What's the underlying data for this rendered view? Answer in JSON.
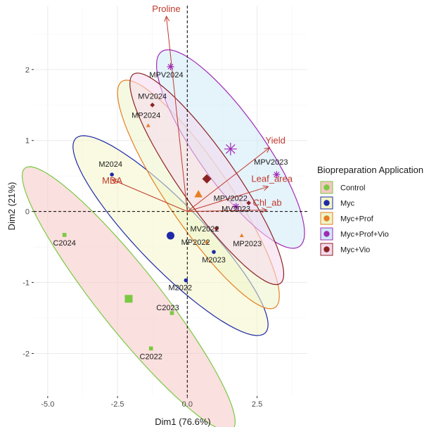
{
  "chart_data": {
    "type": "scatter",
    "xlabel": "Dim1 (76.6%)",
    "ylabel": "Dim2 (21%)",
    "xlim": [
      -5.5,
      4.3
    ],
    "ylim": [
      -2.6,
      2.9
    ],
    "x_ticks": [
      -5.0,
      -2.5,
      0.0,
      2.5
    ],
    "x_tick_labels": [
      "-5.0",
      "-2.5",
      "0.0",
      "2.5"
    ],
    "y_ticks": [
      -2,
      -1,
      0,
      1,
      2
    ],
    "y_tick_labels": [
      "-2",
      "-1",
      "0",
      "1",
      "2"
    ],
    "grid": true,
    "legend": {
      "title": "Biopreparation Application",
      "position": "right",
      "entries": [
        "Control",
        "Myc",
        "Myc+Prof",
        "Myc+Prof+Vio",
        "Myc+Vio"
      ]
    },
    "series": [
      {
        "name": "Control",
        "color": "#7ac943",
        "fill": "#f6c7c3",
        "marker": "square",
        "points": [
          {
            "label": "C2024",
            "x": -4.4,
            "y": -0.33
          },
          {
            "label": "C2023",
            "x": -0.55,
            "y": -1.43
          },
          {
            "label": "C2022",
            "x": -1.3,
            "y": -1.93
          }
        ],
        "centroid": {
          "x": -2.1,
          "y": -1.23
        },
        "ellipse": {
          "cx": -2.1,
          "cy": -1.23,
          "angle": -25.0,
          "rx": 4.2,
          "ry": 0.62
        }
      },
      {
        "name": "Myc",
        "color": "#1f2aa8",
        "fill": "#f4f6c8",
        "marker": "circle",
        "points": [
          {
            "label": "M2024",
            "x": -2.7,
            "y": 0.52
          },
          {
            "label": "M2023",
            "x": 0.95,
            "y": -0.57
          },
          {
            "label": "M2022",
            "x": -0.05,
            "y": -0.97
          }
        ],
        "centroid": {
          "x": -0.6,
          "y": -0.34
        },
        "ellipse": {
          "cx": -0.6,
          "cy": -0.34,
          "angle": -20.3,
          "rx": 3.72,
          "ry": 0.6
        }
      },
      {
        "name": "Myc+Prof",
        "color": "#e67e22",
        "fill": "#eef4c8",
        "marker": "triangle",
        "points": [
          {
            "label": "MP2024",
            "x": -1.4,
            "y": 1.21
          },
          {
            "label": "MP2023",
            "x": 1.95,
            "y": -0.34
          },
          {
            "label": "MP2022",
            "x": 0.7,
            "y": -0.43
          }
        ],
        "centroid": {
          "x": 0.4,
          "y": 0.24
        },
        "ellipse": {
          "cx": 0.4,
          "cy": 0.24,
          "angle": -27.5,
          "rx": 3.25,
          "ry": 0.66
        }
      },
      {
        "name": "Myc+Prof+Vio",
        "color": "#a02ab5",
        "fill": "#cfe9f8",
        "marker": "star",
        "points": [
          {
            "label": "MPV2024",
            "x": -0.6,
            "y": 2.04
          },
          {
            "label": "MPV2023",
            "x": 3.2,
            "y": 0.52
          },
          {
            "label": "MPV2022",
            "x": 1.75,
            "y": 0.07
          }
        ],
        "centroid": {
          "x": 1.55,
          "y": 0.88
        },
        "ellipse": {
          "cx": 1.55,
          "cy": 0.88,
          "angle": -25.5,
          "rx": 2.92,
          "ry": 0.68
        }
      },
      {
        "name": "Myc+Vio",
        "color": "#8b2323",
        "fill": "#f6d9ee",
        "marker": "diamond",
        "points": [
          {
            "label": "MV2024",
            "x": -1.25,
            "y": 1.5
          },
          {
            "label": "MV2023",
            "x": 2.2,
            "y": 0.12
          },
          {
            "label": "MV2022",
            "x": 1.05,
            "y": -0.24
          }
        ],
        "centroid": {
          "x": 0.7,
          "y": 0.46
        },
        "ellipse": {
          "cx": 0.7,
          "cy": 0.46,
          "angle": -27.0,
          "rx": 3.08,
          "ry": 0.58
        }
      }
    ],
    "variables": [
      {
        "label": "Proline",
        "x": -0.75,
        "y": 2.75
      },
      {
        "label": "Yield",
        "x": 2.95,
        "y": 0.9
      },
      {
        "label": "Leaf_area",
        "x": 2.9,
        "y": 0.35
      },
      {
        "label": "Chl_ab",
        "x": 2.85,
        "y": 0.02
      },
      {
        "label": "MDA",
        "x": -2.7,
        "y": 0.45
      }
    ],
    "variable_color": "#c0392b"
  }
}
